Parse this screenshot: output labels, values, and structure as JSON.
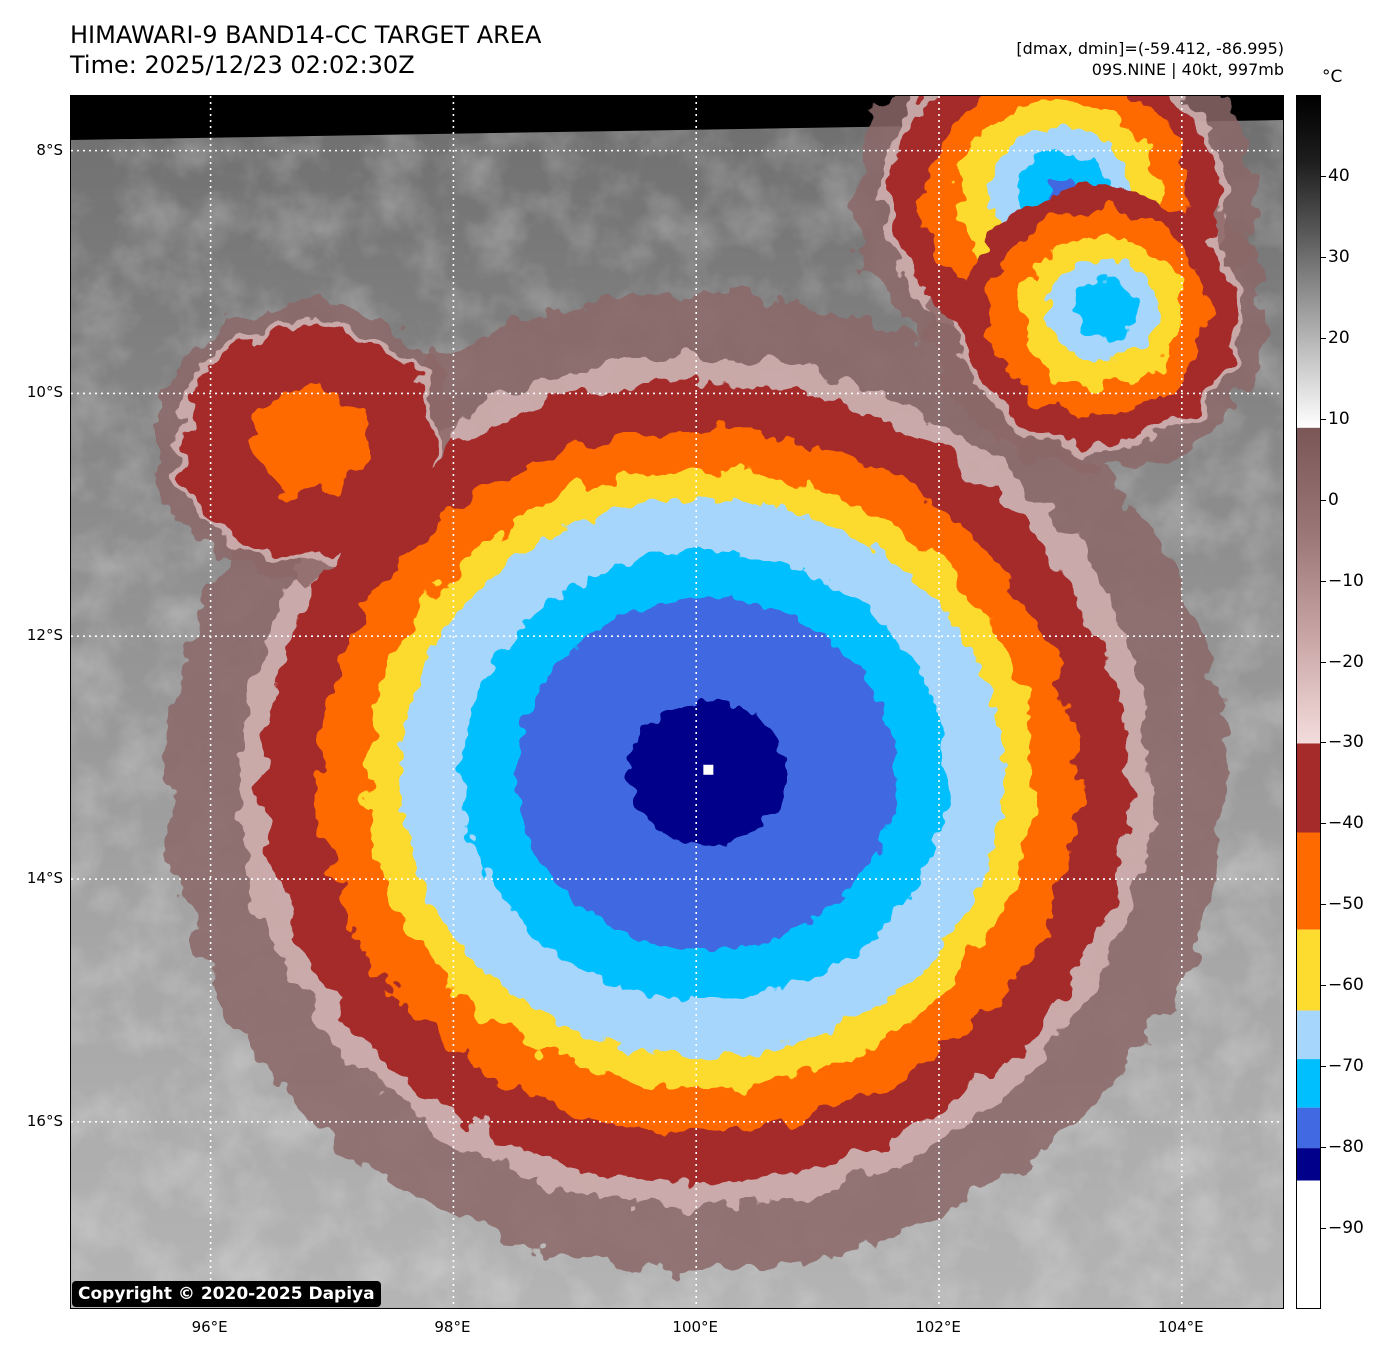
{
  "title": {
    "line1": "HIMAWARI-9 BAND14-CC TARGET AREA",
    "line2": "Time: 2025/12/23 02:02:30Z"
  },
  "meta": {
    "line1": "[dmax, dmin]=(-59.412, -86.995)",
    "line2": "09S.NINE | 40kt, 997mb"
  },
  "colorbar": {
    "unit": "°C",
    "range": [
      -100,
      50
    ],
    "ticks": [
      40,
      30,
      20,
      10,
      0,
      -10,
      -20,
      -30,
      -40,
      -50,
      -60,
      -70,
      -80,
      -90
    ],
    "tick_labels": [
      "40",
      "30",
      "20",
      "10",
      "0",
      "−10",
      "−20",
      "−30",
      "−40",
      "−50",
      "−60",
      "−70",
      "−80",
      "−90"
    ],
    "bands": [
      {
        "from": 9,
        "to": 50,
        "color": "grayscale",
        "stops": [
          "#ffffff",
          "#c8c8c8",
          "#909090",
          "#555555",
          "#1e1e1e",
          "#000000"
        ]
      },
      {
        "from": -30,
        "to": 9,
        "color": "pinkbrown",
        "stops": [
          "#f4dcdc",
          "#c9a6a6",
          "#9a7676",
          "#7a5656"
        ]
      },
      {
        "from": -41,
        "to": -30,
        "color": "#a52a2a"
      },
      {
        "from": -53,
        "to": -41,
        "color": "#ff6a00"
      },
      {
        "from": -63,
        "to": -53,
        "color": "#fddb2f"
      },
      {
        "from": -69,
        "to": -63,
        "color": "#a6d6fb"
      },
      {
        "from": -75,
        "to": -69,
        "color": "#00bfff"
      },
      {
        "from": -80,
        "to": -75,
        "color": "#4169e1"
      },
      {
        "from": -84,
        "to": -80,
        "color": "#00008b"
      },
      {
        "from": -100,
        "to": -84,
        "color": "#ffffff"
      }
    ]
  },
  "map": {
    "lon_range": [
      94.85,
      104.85
    ],
    "lat_range": [
      -17.55,
      -7.55
    ],
    "lon_ticks": [
      96,
      98,
      100,
      102,
      104
    ],
    "lon_labels": [
      "96°E",
      "98°E",
      "100°E",
      "102°E",
      "104°E"
    ],
    "lat_ticks": [
      -8,
      -10,
      -12,
      -14,
      -16
    ],
    "lat_labels": [
      "8°S",
      "10°S",
      "12°S",
      "14°S",
      "16°S"
    ],
    "storm_center": {
      "lon": 100.1,
      "lat": -13.1
    },
    "cold_cells": [
      {
        "name": "main storm",
        "lon": 100.0,
        "lat": -13.2,
        "rings_deg": [
          3.3,
          2.9,
          2.55,
          2.3,
          1.85,
          1.45,
          0.6,
          0.2
        ]
      },
      {
        "name": "northeast cluster upper",
        "lon": 102.95,
        "lat": -8.4,
        "rings_deg": [
          1.25,
          1.0,
          0.78,
          0.55,
          0.35,
          0.12
        ]
      },
      {
        "name": "northeast cluster lower",
        "lon": 103.3,
        "lat": -9.35,
        "rings_deg": [
          1.05,
          0.85,
          0.62,
          0.42,
          0.25
        ]
      },
      {
        "name": "west cell",
        "lon": 96.8,
        "lat": -10.4,
        "rings_deg": [
          0.95,
          0.45
        ]
      }
    ]
  },
  "copyright": "Copyright © 2020-2025 Dapiya"
}
